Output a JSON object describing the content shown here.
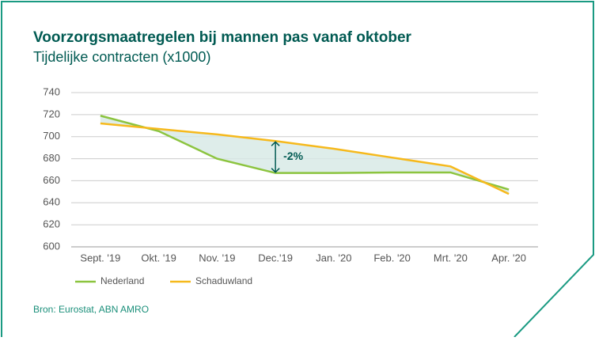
{
  "chart_data": {
    "type": "line",
    "title": "Voorzorgsmaatregelen bij mannen pas vanaf oktober",
    "subtitle": "Tijdelijke contracten (x1000)",
    "categories": [
      "Sept. '19",
      "Okt. '19",
      "Nov. '19",
      "Dec.'19",
      "Jan. '20",
      "Feb. '20",
      "Mrt. '20",
      "Apr. '20"
    ],
    "series": [
      {
        "name": "Nederland",
        "color": "#8cc43f",
        "values": [
          719,
          705,
          680,
          667,
          667,
          667.5,
          667.5,
          652
        ]
      },
      {
        "name": "Schaduwland",
        "color": "#f6b91c",
        "values": [
          712,
          707,
          702,
          696,
          689,
          681,
          673,
          648
        ]
      }
    ],
    "annotation": "-2%",
    "ylim": [
      600,
      740
    ],
    "yticks": [
      600,
      620,
      640,
      660,
      680,
      700,
      720,
      740
    ],
    "grid": true,
    "source": "Bron: Eurostat, ABN AMRO"
  }
}
